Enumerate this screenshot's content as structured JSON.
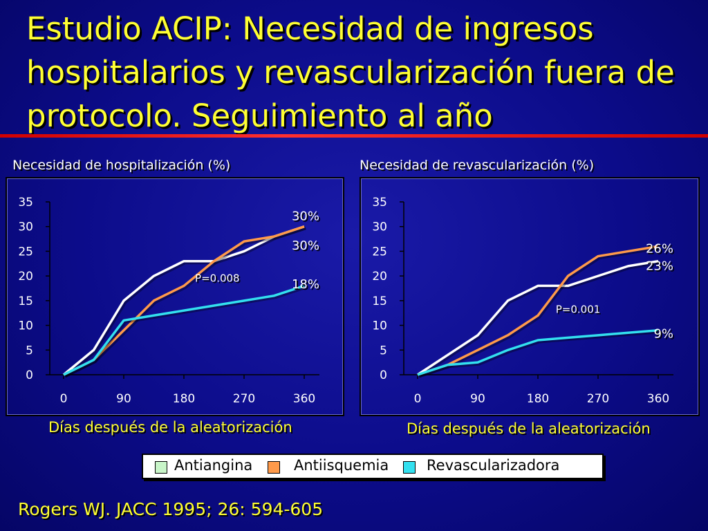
{
  "title": "Estudio ACIP: Necesidad de ingresos hospitalarios y revascularización fuera de protocolo. Seguimiento al año",
  "citation": "Rogers WJ. JACC 1995; 26: 594-605",
  "colors": {
    "background": "#0c0c8a",
    "title": "#ffff33",
    "rule": "#e00000",
    "antiangina": "#ffffff",
    "antiisquemia": "#ff9a4a",
    "revascularizadora": "#33e0ef"
  },
  "legend": {
    "items": [
      {
        "label": "Antiangina",
        "color": "#c8f5c8"
      },
      {
        "label": "Antiisquemia",
        "color": "#ff9a4a"
      },
      {
        "label": "Revascularizadora",
        "color": "#33e0ef"
      }
    ]
  },
  "chart_data": [
    {
      "type": "line",
      "heading": "Necesidad de hospitalización (%)",
      "xlabel": "Días después de la aleatorización",
      "ylabel": "",
      "xlim": [
        0,
        360
      ],
      "ylim": [
        0,
        35
      ],
      "x_ticks": [
        "0",
        "90",
        "180",
        "270",
        "360"
      ],
      "y_ticks": [
        "0",
        "5",
        "10",
        "15",
        "20",
        "25",
        "30",
        "35"
      ],
      "series": [
        {
          "name": "Antiangina",
          "color": "#ffffff",
          "points": [
            [
              0,
              0
            ],
            [
              45,
              5
            ],
            [
              90,
              15
            ],
            [
              135,
              20
            ],
            [
              180,
              23
            ],
            [
              225,
              23
            ],
            [
              270,
              25
            ],
            [
              315,
              28
            ],
            [
              360,
              30
            ]
          ]
        },
        {
          "name": "Antiisquemia",
          "color": "#ff9a4a",
          "points": [
            [
              0,
              0
            ],
            [
              45,
              3
            ],
            [
              90,
              9
            ],
            [
              135,
              15
            ],
            [
              180,
              18
            ],
            [
              225,
              23
            ],
            [
              270,
              27
            ],
            [
              315,
              28
            ],
            [
              360,
              30
            ]
          ]
        },
        {
          "name": "Revascularizadora",
          "color": "#33e0ef",
          "points": [
            [
              0,
              0
            ],
            [
              45,
              3
            ],
            [
              90,
              11
            ],
            [
              135,
              12
            ],
            [
              180,
              13
            ],
            [
              225,
              14
            ],
            [
              270,
              15
            ],
            [
              315,
              16
            ],
            [
              360,
              18
            ]
          ]
        }
      ],
      "annotations": [
        {
          "text": "30%",
          "x": 360,
          "y": 32.3
        },
        {
          "text": "30%",
          "x": 360,
          "y": 26.3
        },
        {
          "text": "18%",
          "x": 360,
          "y": 18.5
        },
        {
          "text": "P=0.008",
          "x": 230,
          "y": 19.8
        }
      ]
    },
    {
      "type": "line",
      "heading": "Necesidad de revascularización (%)",
      "xlabel": "Días después de la aleatorización",
      "ylabel": "",
      "xlim": [
        0,
        360
      ],
      "ylim": [
        0,
        35
      ],
      "x_ticks": [
        "0",
        "90",
        "180",
        "270",
        "360"
      ],
      "y_ticks": [
        "0",
        "5",
        "10",
        "15",
        "20",
        "25",
        "30",
        "35"
      ],
      "series": [
        {
          "name": "Antiangina",
          "color": "#ffffff",
          "points": [
            [
              0,
              0
            ],
            [
              45,
              4
            ],
            [
              90,
              8
            ],
            [
              135,
              15
            ],
            [
              180,
              18
            ],
            [
              225,
              18
            ],
            [
              270,
              20
            ],
            [
              315,
              22
            ],
            [
              360,
              23
            ]
          ]
        },
        {
          "name": "Antiisquemia",
          "color": "#ff9a4a",
          "points": [
            [
              0,
              0
            ],
            [
              45,
              2
            ],
            [
              90,
              5
            ],
            [
              135,
              8
            ],
            [
              180,
              12
            ],
            [
              225,
              20
            ],
            [
              270,
              24
            ],
            [
              315,
              25
            ],
            [
              360,
              26
            ]
          ]
        },
        {
          "name": "Revascularizadora",
          "color": "#33e0ef",
          "points": [
            [
              0,
              0
            ],
            [
              45,
              2
            ],
            [
              90,
              2.5
            ],
            [
              135,
              5
            ],
            [
              180,
              7
            ],
            [
              225,
              7.5
            ],
            [
              270,
              8
            ],
            [
              315,
              8.5
            ],
            [
              360,
              9
            ]
          ]
        }
      ],
      "annotations": [
        {
          "text": "26%",
          "x": 360,
          "y": 25.7
        },
        {
          "text": "23%",
          "x": 360,
          "y": 22.2
        },
        {
          "text": "9%",
          "x": 360,
          "y": 8.5
        },
        {
          "text": "P=0.001",
          "x": 240,
          "y": 13.5
        }
      ]
    }
  ]
}
